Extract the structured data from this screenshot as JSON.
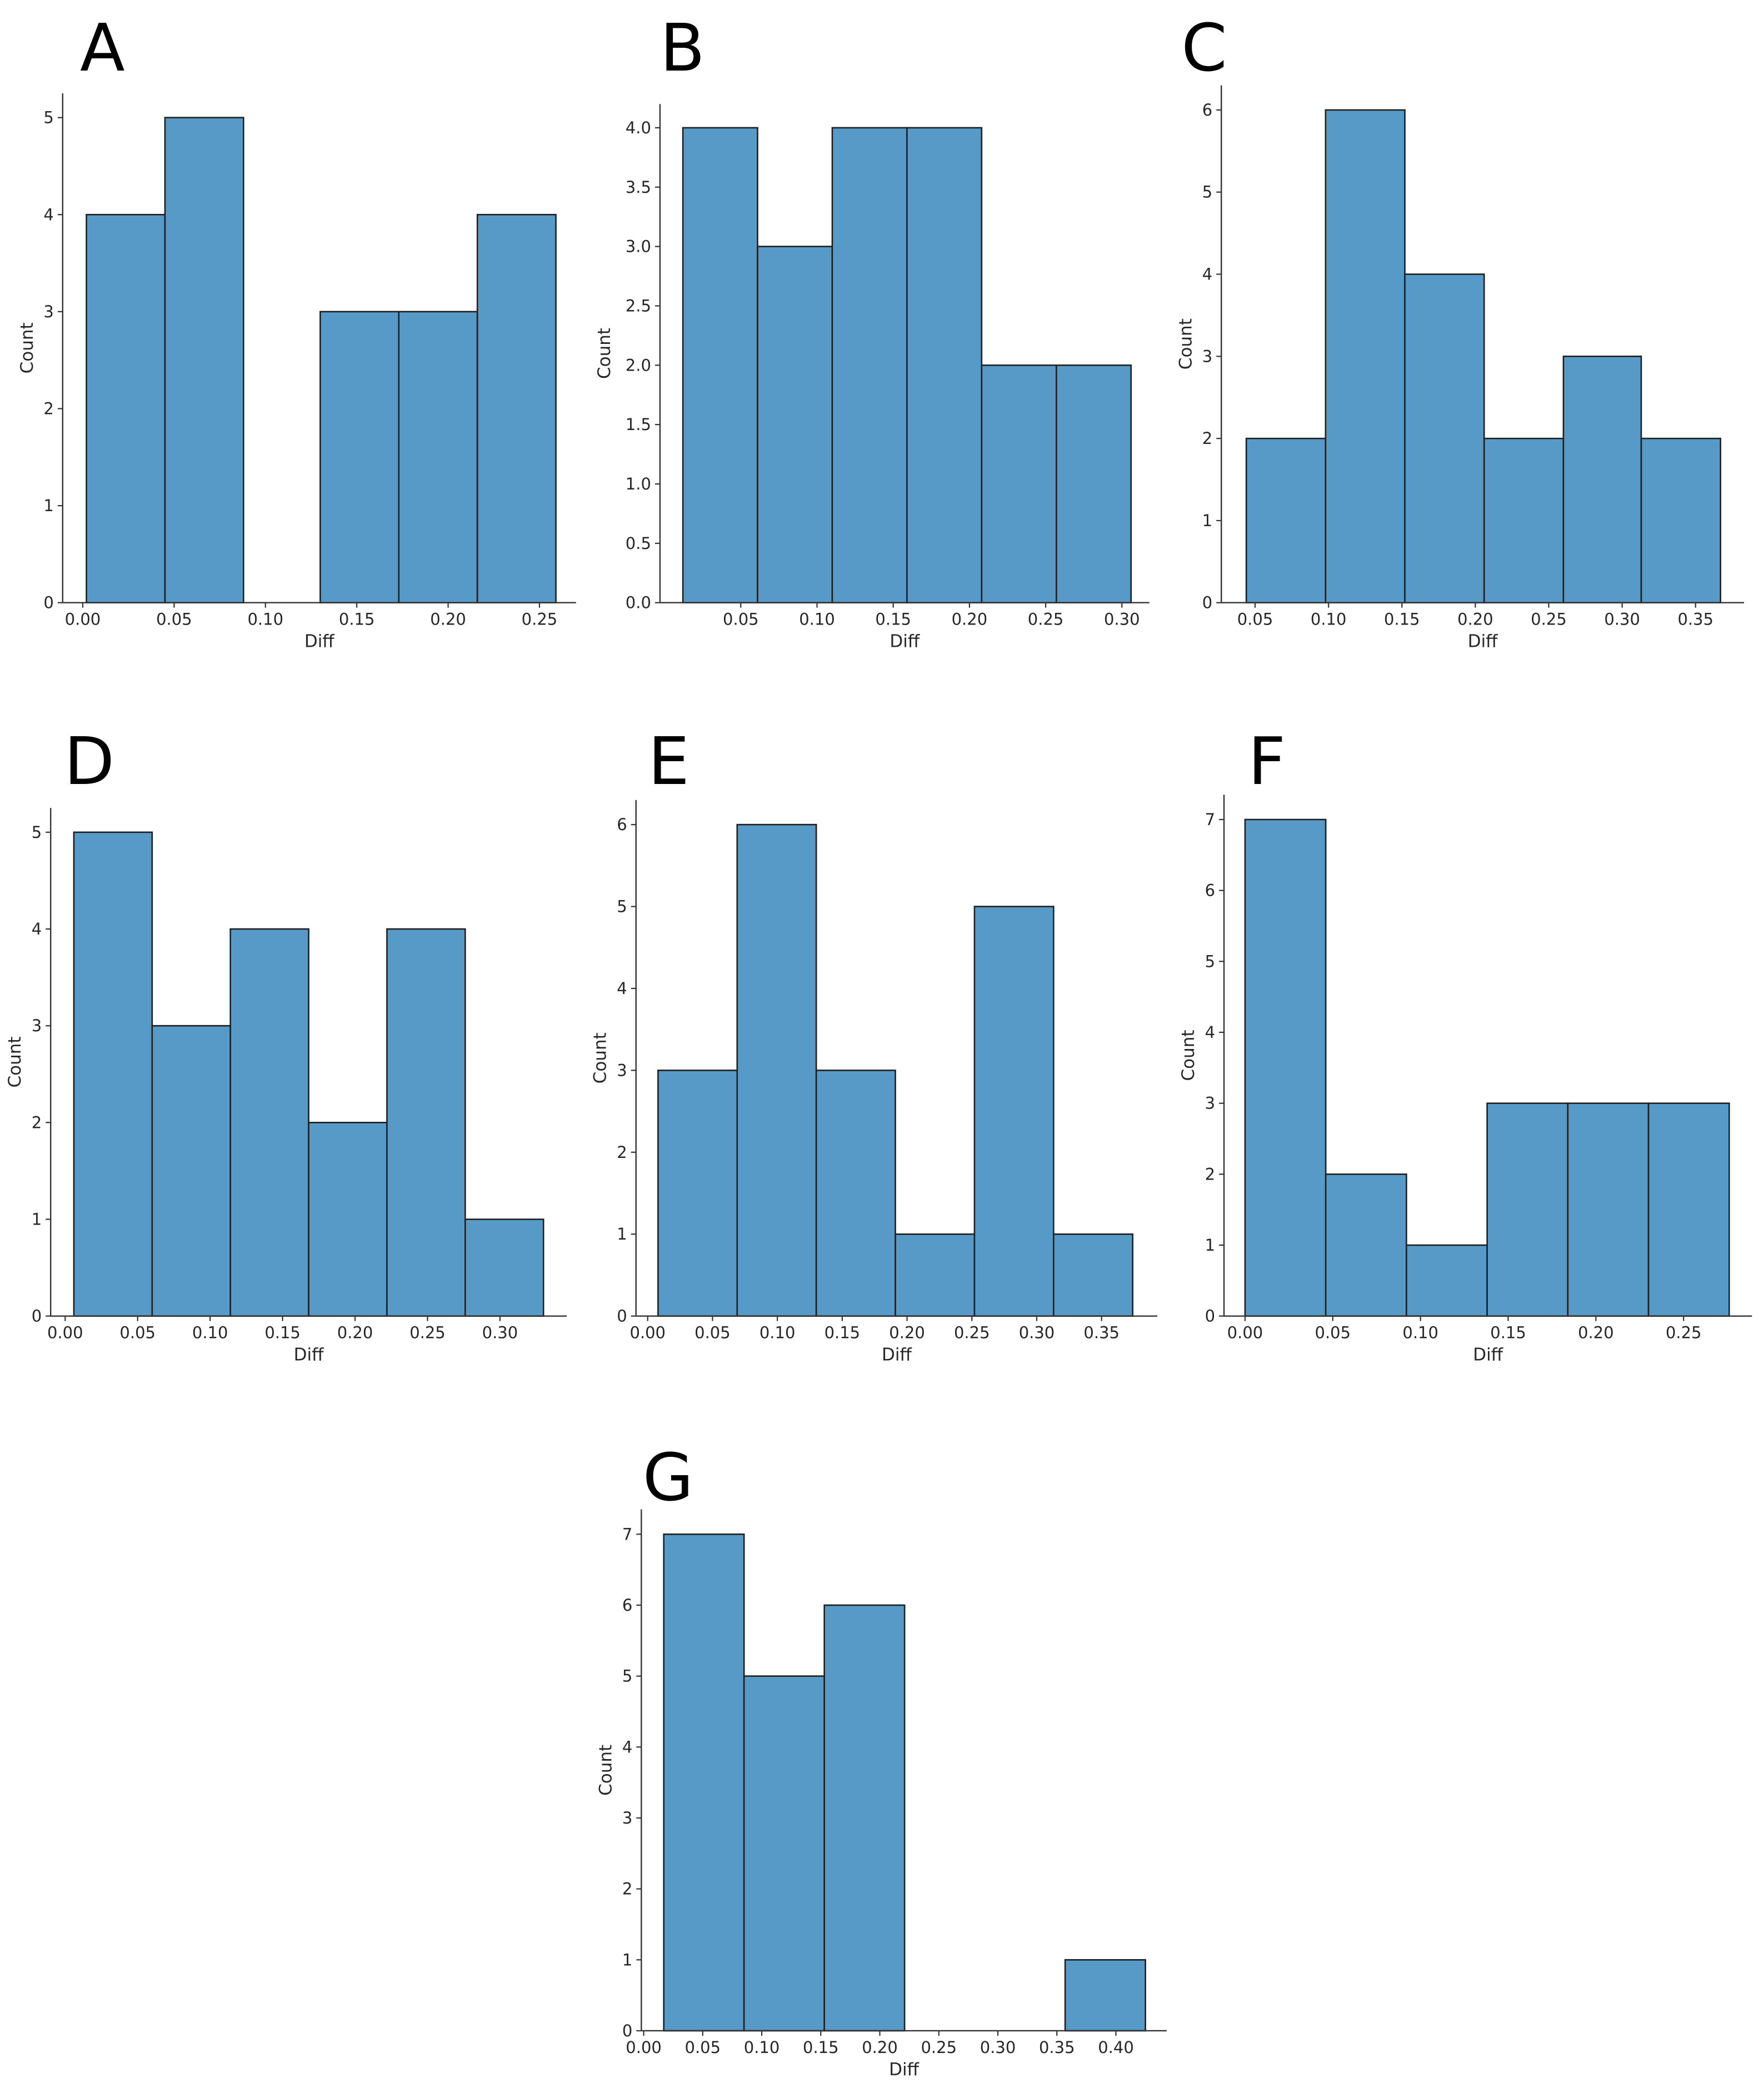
{
  "figure": {
    "bar_color": "#5799c7",
    "edge_color": "#1f1f1f",
    "axis_color": "#333333"
  },
  "chart_data": [
    {
      "panel": "A",
      "type": "bar",
      "xlabel": "Diff",
      "ylabel": "Count",
      "xlim": [
        -0.011,
        0.27
      ],
      "ylim": [
        0,
        5.25
      ],
      "xticks": [
        "0.00",
        "0.05",
        "0.10",
        "0.15",
        "0.20",
        "0.25"
      ],
      "yticks": [
        "0",
        "1",
        "2",
        "3",
        "4",
        "5"
      ],
      "bins": [
        {
          "x0": 0.002,
          "x1": 0.045,
          "value": 4
        },
        {
          "x0": 0.045,
          "x1": 0.088,
          "value": 5
        },
        {
          "x0": 0.088,
          "x1": 0.13,
          "value": 0
        },
        {
          "x0": 0.13,
          "x1": 0.173,
          "value": 3
        },
        {
          "x0": 0.173,
          "x1": 0.216,
          "value": 3
        },
        {
          "x0": 0.216,
          "x1": 0.259,
          "value": 4
        }
      ]
    },
    {
      "panel": "B",
      "type": "bar",
      "xlabel": "Diff",
      "ylabel": "Count",
      "xlim": [
        -0.003,
        0.318
      ],
      "ylim": [
        0,
        4.2
      ],
      "xticks": [
        "0.05",
        "0.10",
        "0.15",
        "0.20",
        "0.25",
        "0.30"
      ],
      "yticks": [
        "0.0",
        "0.5",
        "1.0",
        "1.5",
        "2.0",
        "2.5",
        "3.0",
        "3.5",
        "4.0"
      ],
      "bins": [
        {
          "x0": 0.012,
          "x1": 0.061,
          "value": 4
        },
        {
          "x0": 0.061,
          "x1": 0.11,
          "value": 3
        },
        {
          "x0": 0.11,
          "x1": 0.159,
          "value": 4
        },
        {
          "x0": 0.159,
          "x1": 0.208,
          "value": 4
        },
        {
          "x0": 0.208,
          "x1": 0.257,
          "value": 2
        },
        {
          "x0": 0.257,
          "x1": 0.306,
          "value": 2
        }
      ]
    },
    {
      "panel": "C",
      "type": "bar",
      "xlabel": "Diff",
      "ylabel": "Count",
      "xlim": [
        0.027,
        0.383
      ],
      "ylim": [
        0,
        6.3
      ],
      "xticks": [
        "0.05",
        "0.10",
        "0.15",
        "0.20",
        "0.25",
        "0.30",
        "0.35"
      ],
      "yticks": [
        "0",
        "1",
        "2",
        "3",
        "4",
        "5",
        "6"
      ],
      "bins": [
        {
          "x0": 0.044,
          "x1": 0.098,
          "value": 2
        },
        {
          "x0": 0.098,
          "x1": 0.152,
          "value": 6
        },
        {
          "x0": 0.152,
          "x1": 0.206,
          "value": 4
        },
        {
          "x0": 0.206,
          "x1": 0.26,
          "value": 2
        },
        {
          "x0": 0.26,
          "x1": 0.313,
          "value": 3
        },
        {
          "x0": 0.313,
          "x1": 0.367,
          "value": 2
        }
      ]
    },
    {
      "panel": "D",
      "type": "bar",
      "xlabel": "Diff",
      "ylabel": "Count",
      "xlim": [
        -0.01,
        0.346
      ],
      "ylim": [
        0,
        5.25
      ],
      "xticks": [
        "0.00",
        "0.05",
        "0.10",
        "0.15",
        "0.20",
        "0.25",
        "0.30"
      ],
      "yticks": [
        "0",
        "1",
        "2",
        "3",
        "4",
        "5"
      ],
      "bins": [
        {
          "x0": 0.006,
          "x1": 0.06,
          "value": 5
        },
        {
          "x0": 0.06,
          "x1": 0.114,
          "value": 3
        },
        {
          "x0": 0.114,
          "x1": 0.168,
          "value": 4
        },
        {
          "x0": 0.168,
          "x1": 0.222,
          "value": 2
        },
        {
          "x0": 0.222,
          "x1": 0.276,
          "value": 4
        },
        {
          "x0": 0.276,
          "x1": 0.33,
          "value": 1
        }
      ]
    },
    {
      "panel": "E",
      "type": "bar",
      "xlabel": "Diff",
      "ylabel": "Count",
      "xlim": [
        -0.009,
        0.393
      ],
      "ylim": [
        0,
        6.3
      ],
      "xticks": [
        "0.00",
        "0.05",
        "0.10",
        "0.15",
        "0.20",
        "0.25",
        "0.30",
        "0.35"
      ],
      "yticks": [
        "0",
        "1",
        "2",
        "3",
        "4",
        "5",
        "6"
      ],
      "bins": [
        {
          "x0": 0.008,
          "x1": 0.069,
          "value": 3
        },
        {
          "x0": 0.069,
          "x1": 0.13,
          "value": 6
        },
        {
          "x0": 0.13,
          "x1": 0.191,
          "value": 3
        },
        {
          "x0": 0.191,
          "x1": 0.252,
          "value": 1
        },
        {
          "x0": 0.252,
          "x1": 0.313,
          "value": 5
        },
        {
          "x0": 0.313,
          "x1": 0.374,
          "value": 1
        }
      ]
    },
    {
      "panel": "F",
      "type": "bar",
      "xlabel": "Diff",
      "ylabel": "Count",
      "xlim": [
        -0.012,
        0.289
      ],
      "ylim": [
        0,
        7.35
      ],
      "xticks": [
        "0.00",
        "0.05",
        "0.10",
        "0.15",
        "0.20",
        "0.25"
      ],
      "yticks": [
        "0",
        "1",
        "2",
        "3",
        "4",
        "5",
        "6",
        "7"
      ],
      "bins": [
        {
          "x0": 0.0,
          "x1": 0.046,
          "value": 7
        },
        {
          "x0": 0.046,
          "x1": 0.092,
          "value": 2
        },
        {
          "x0": 0.092,
          "x1": 0.138,
          "value": 1
        },
        {
          "x0": 0.138,
          "x1": 0.184,
          "value": 3
        },
        {
          "x0": 0.184,
          "x1": 0.23,
          "value": 3
        },
        {
          "x0": 0.23,
          "x1": 0.276,
          "value": 3
        }
      ]
    },
    {
      "panel": "G",
      "type": "bar",
      "xlabel": "Diff",
      "ylabel": "Count",
      "xlim": [
        -0.002,
        0.443
      ],
      "ylim": [
        0,
        7.35
      ],
      "xticks": [
        "0.00",
        "0.05",
        "0.10",
        "0.15",
        "0.20",
        "0.25",
        "0.30",
        "0.35",
        "0.40"
      ],
      "yticks": [
        "0",
        "1",
        "2",
        "3",
        "4",
        "5",
        "6",
        "7"
      ],
      "bins": [
        {
          "x0": 0.017,
          "x1": 0.085,
          "value": 7
        },
        {
          "x0": 0.085,
          "x1": 0.153,
          "value": 5
        },
        {
          "x0": 0.153,
          "x1": 0.221,
          "value": 6
        },
        {
          "x0": 0.221,
          "x1": 0.289,
          "value": 0
        },
        {
          "x0": 0.289,
          "x1": 0.357,
          "value": 0
        },
        {
          "x0": 0.357,
          "x1": 0.425,
          "value": 1
        }
      ]
    }
  ]
}
